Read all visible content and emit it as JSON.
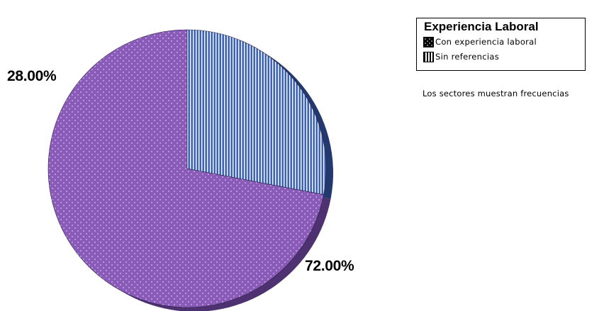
{
  "chart_data": {
    "type": "pie",
    "legend_title": "Experiencia Laboral",
    "categories": [
      "Con experiencia laboral",
      "Sin referencias"
    ],
    "values": [
      72.0,
      28.0
    ],
    "value_labels": [
      "72.00%",
      "28.00%"
    ],
    "colors": [
      "#8a5bb8",
      "#3a62b8"
    ],
    "start_angle_deg": 0,
    "direction": "counterclockwise",
    "legend_position": "top-right",
    "note": "Los sectores muestran frecuencias"
  }
}
